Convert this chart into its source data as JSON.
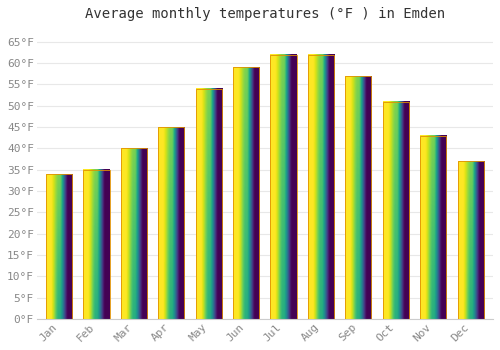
{
  "title": "Average monthly temperatures (°F ) in Emden",
  "months": [
    "Jan",
    "Feb",
    "Mar",
    "Apr",
    "May",
    "Jun",
    "Jul",
    "Aug",
    "Sep",
    "Oct",
    "Nov",
    "Dec"
  ],
  "values": [
    34,
    35,
    40,
    45,
    54,
    59,
    62,
    62,
    57,
    51,
    43,
    37
  ],
  "bar_color_top": "#FFCC00",
  "bar_color_bottom": "#FFA000",
  "bar_edge_color": "#E09000",
  "background_color": "#FFFFFF",
  "grid_color": "#E8E8E8",
  "ytick_step": 5,
  "ymin": 0,
  "ymax": 68,
  "title_fontsize": 10,
  "tick_fontsize": 8,
  "tick_color": "#888888",
  "font_family": "monospace"
}
